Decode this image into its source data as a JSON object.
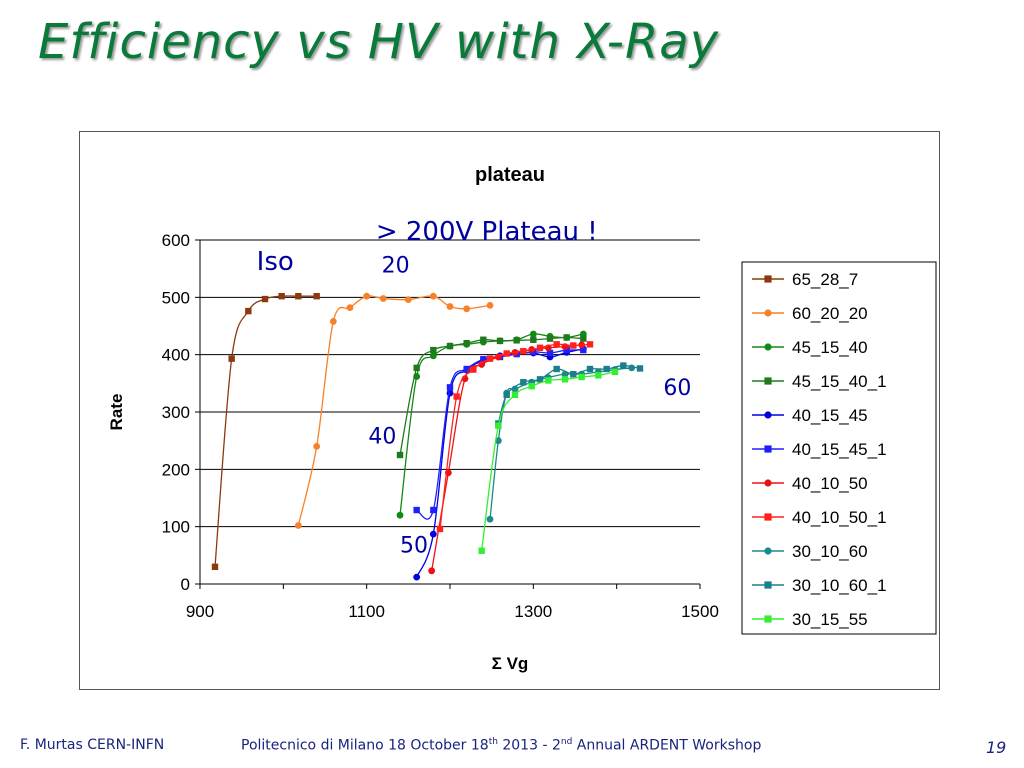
{
  "slide": {
    "title": "Efficiency vs HV with X-Ray",
    "footer": {
      "author": "F. Murtas CERN-INFN",
      "event_a": "Politecnico di Milano 18 October 18",
      "event_sup1": "th",
      "event_b": " 2013 - 2",
      "event_sup2": "nd",
      "event_c": " Annual ARDENT Workshop",
      "page": "19"
    }
  },
  "chart_data": {
    "type": "line",
    "title": "plateau",
    "xlabel": "Σ Vg",
    "ylabel": "Rate",
    "xlim": [
      900,
      1500
    ],
    "ylim": [
      0,
      600
    ],
    "xticks": [
      900,
      1100,
      1300,
      1500
    ],
    "yticks": [
      0,
      100,
      200,
      300,
      400,
      500,
      600
    ],
    "grid": "horizontal",
    "legend_position": "right",
    "annotations": [
      {
        "text": "> 200V Plateau !",
        "color": "#0000a0",
        "x": 1111,
        "y": 600
      },
      {
        "text": "Iso",
        "color": "#0000a0",
        "x": 968,
        "y": 548
      },
      {
        "text": "20",
        "color": "#0000a0",
        "x": 1118,
        "y": 543
      },
      {
        "text": "40",
        "color": "#0000a0",
        "x": 1102,
        "y": 245
      },
      {
        "text": "50",
        "color": "#0000a0",
        "x": 1140,
        "y": 55
      },
      {
        "text": "60",
        "color": "#0000a0",
        "x": 1456,
        "y": 330
      }
    ],
    "series": [
      {
        "name": "65_28_7",
        "color": "#8b3a0e",
        "marker": "square",
        "x": [
          918,
          938,
          958,
          978,
          998,
          1018,
          1040
        ],
        "y": [
          30,
          393,
          476,
          497,
          502,
          502,
          502
        ]
      },
      {
        "name": "60_20_20",
        "color": "#f7812a",
        "marker": "circle",
        "x": [
          1018,
          1040,
          1060,
          1080,
          1100,
          1120,
          1150,
          1180,
          1200,
          1220,
          1248
        ],
        "y": [
          102,
          240,
          458,
          482,
          502,
          498,
          496,
          502,
          484,
          480,
          486
        ]
      },
      {
        "name": "45_15_40",
        "color": "#138a13",
        "marker": "circle",
        "x": [
          1140,
          1160,
          1180,
          1200,
          1220,
          1240,
          1260,
          1280,
          1300,
          1320,
          1340,
          1360
        ],
        "y": [
          120,
          362,
          398,
          415,
          418,
          422,
          424,
          426,
          436,
          432,
          430,
          436
        ]
      },
      {
        "name": "45_15_40_1",
        "color": "#1f7a1f",
        "marker": "square",
        "x": [
          1140,
          1160,
          1180,
          1200,
          1220,
          1240,
          1260,
          1280,
          1300,
          1320,
          1340,
          1360
        ],
        "y": [
          225,
          377,
          408,
          415,
          420,
          426,
          424,
          425,
          426,
          428,
          430,
          428
        ]
      },
      {
        "name": "40_15_45",
        "color": "#0000e0",
        "marker": "circle",
        "x": [
          1160,
          1180,
          1200,
          1220,
          1240,
          1260,
          1280,
          1300,
          1320,
          1340,
          1360
        ],
        "y": [
          12,
          87,
          333,
          373,
          390,
          398,
          402,
          403,
          396,
          404,
          410
        ]
      },
      {
        "name": "40_15_45_1",
        "color": "#2020ff",
        "marker": "square",
        "x": [
          1160,
          1180,
          1200,
          1220,
          1240,
          1260,
          1280,
          1300,
          1320,
          1340,
          1360
        ],
        "y": [
          129,
          129,
          343,
          375,
          392,
          396,
          401,
          405,
          403,
          408,
          408
        ]
      },
      {
        "name": "40_10_50",
        "color": "#ee1111",
        "marker": "circle",
        "x": [
          1178,
          1198,
          1218,
          1238,
          1258,
          1278,
          1298,
          1318,
          1338,
          1358
        ],
        "y": [
          23,
          194,
          358,
          383,
          396,
          404,
          409,
          412,
          414,
          417
        ]
      },
      {
        "name": "40_10_50_1",
        "color": "#ff2020",
        "marker": "square",
        "x": [
          1188,
          1208,
          1228,
          1248,
          1268,
          1288,
          1308,
          1328,
          1348,
          1368
        ],
        "y": [
          96,
          327,
          374,
          393,
          402,
          406,
          412,
          418,
          416,
          418
        ]
      },
      {
        "name": "30_10_60",
        "color": "#1a8a8a",
        "marker": "circle",
        "x": [
          1248,
          1258,
          1268,
          1278,
          1298,
          1318,
          1338,
          1358,
          1378,
          1398,
          1418
        ],
        "y": [
          113,
          250,
          333,
          340,
          352,
          360,
          366,
          366,
          370,
          374,
          377
        ]
      },
      {
        "name": "30_10_60_1",
        "color": "#1a7f8a",
        "marker": "square",
        "x": [
          1258,
          1268,
          1288,
          1308,
          1328,
          1348,
          1368,
          1388,
          1408,
          1428
        ],
        "y": [
          280,
          330,
          352,
          357,
          375,
          366,
          375,
          375,
          381,
          376
        ]
      },
      {
        "name": "30_15_55",
        "color": "#33ee33",
        "marker": "square",
        "x": [
          1238,
          1258,
          1278,
          1298,
          1318,
          1338,
          1358,
          1378,
          1398
        ],
        "y": [
          58,
          276,
          330,
          345,
          355,
          357,
          361,
          364,
          370
        ]
      }
    ]
  }
}
